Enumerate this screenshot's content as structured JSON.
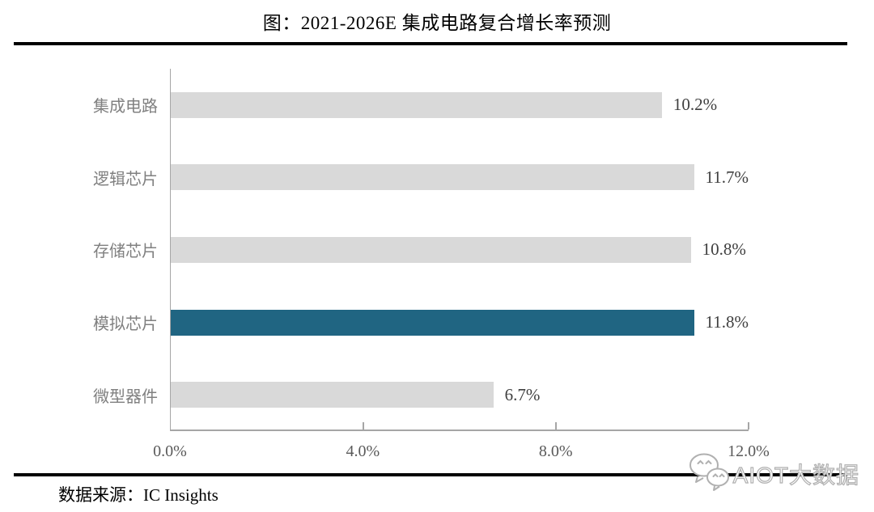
{
  "title": "图：2021-2026E 集成电路复合增长率预测",
  "source": "数据来源：IC Insights",
  "watermark": {
    "icon": "wechat-icon",
    "text": "AIOT大数据"
  },
  "chart_data": {
    "type": "bar",
    "orientation": "horizontal",
    "title": "图：2021-2026E 集成电路复合增长率预测",
    "categories": [
      "集成电路",
      "逻辑芯片",
      "存储芯片",
      "模拟芯片",
      "微型器件"
    ],
    "values": [
      10.2,
      11.7,
      10.8,
      11.8,
      6.7
    ],
    "value_labels": [
      "10.2%",
      "11.7%",
      "10.8%",
      "11.8%",
      "6.7%"
    ],
    "highlight_index": 3,
    "x_ticks": [
      "0.0%",
      "4.0%",
      "8.0%",
      "12.0%"
    ],
    "xlim": [
      0,
      12
    ],
    "grid": false,
    "legend": false,
    "colors": {
      "bar": "#d9d9d9",
      "highlight": "#206582",
      "axis": "#a6a6a6"
    }
  }
}
